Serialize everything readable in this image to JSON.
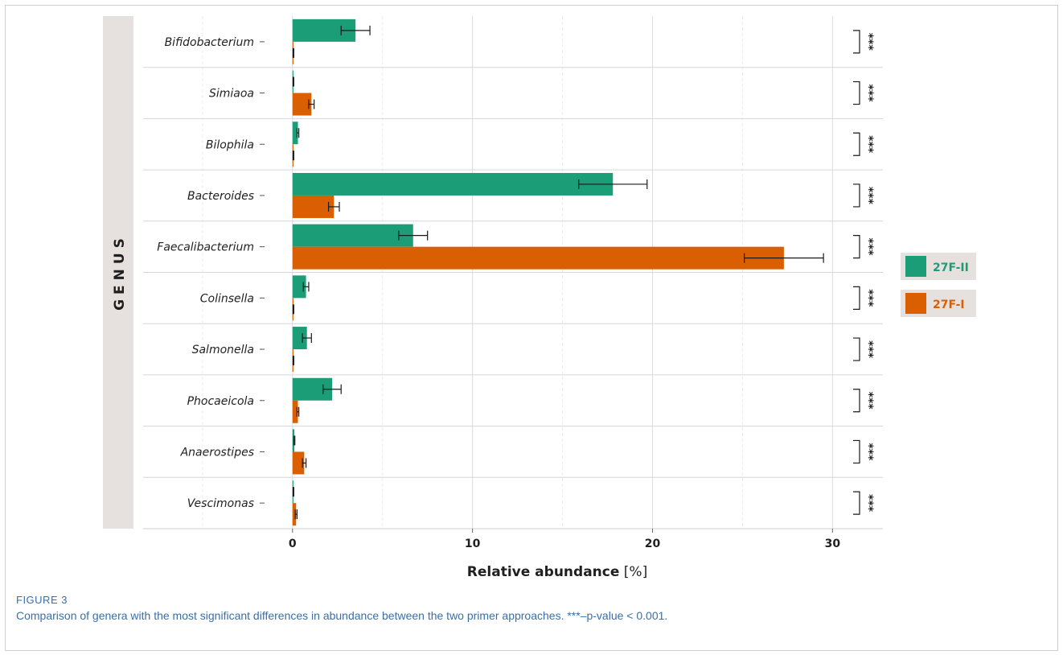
{
  "figure": {
    "label": "FIGURE 3",
    "caption": "Comparison of genera with the most significant differences in abundance between the two primer approaches. ***–p-value < 0.001."
  },
  "chart_data": {
    "type": "bar",
    "orientation": "horizontal",
    "facet_label": "GENUS",
    "categories": [
      "Bifidobacterium",
      "Simiaoa",
      "Bilophila",
      "Bacteroides",
      "Faecalibacterium",
      "Colinsella",
      "Salmonella",
      "Phocaeicola",
      "Anaerostipes",
      "Vescimonas"
    ],
    "series": [
      {
        "name": "27F-II",
        "color": "#1b9e77",
        "values": [
          3.5,
          0.05,
          0.3,
          17.8,
          6.7,
          0.75,
          0.8,
          2.2,
          0.1,
          0.05
        ],
        "error": [
          0.8,
          0.02,
          0.05,
          1.9,
          0.8,
          0.15,
          0.25,
          0.5,
          0.03,
          0.02
        ]
      },
      {
        "name": "27F-I",
        "color": "#d95f02",
        "values": [
          0.05,
          1.05,
          0.05,
          2.3,
          27.3,
          0.05,
          0.05,
          0.3,
          0.65,
          0.2
        ]
      }
    ],
    "series_errors_27F_I": [
      0.02,
      0.15,
      0.02,
      0.3,
      2.2,
      0.02,
      0.02,
      0.05,
      0.1,
      0.05
    ],
    "significance": [
      "***",
      "***",
      "***",
      "***",
      "***",
      "***",
      "***",
      "***",
      "***",
      "***"
    ],
    "x_ticks": [
      0,
      10,
      20,
      30
    ],
    "xlim": [
      -8.3,
      32.8
    ],
    "xlabel_bold": "Relative abundance",
    "xlabel_unit": " [%]",
    "grid": true,
    "legend_position": "right"
  }
}
